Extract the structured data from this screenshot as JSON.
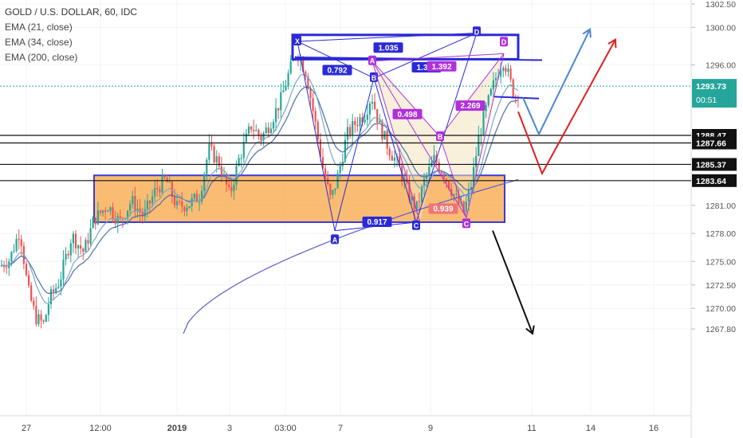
{
  "legend": {
    "title": "GOLD / U.S. DOLLAR, 60, IDC",
    "ema21": "EMA (21, close)",
    "ema34": "EMA (34, close)",
    "ema200": "EMA (200, close)"
  },
  "chart_data": {
    "type": "candlestick",
    "symbol": "GOLD / U.S. DOLLAR",
    "interval": "60",
    "source": "IDC",
    "x_tick_labels": [
      "27",
      "12:00",
      "2019",
      "3",
      "03:00",
      "7",
      "9",
      "11",
      "14",
      "16"
    ],
    "y_ticks": [
      1302.5,
      1300.0,
      1296.0,
      1293.73,
      1281.0,
      1278.0,
      1275.0,
      1272.5,
      1270.0,
      1267.8
    ],
    "y_tick_labels": [
      "1302.50",
      "1300.00",
      "1296.00",
      "1281.00",
      "1278.00",
      "1275.00",
      "1272.50",
      "1270.00",
      "1267.80"
    ],
    "ylim": [
      1267.3,
      1303.0
    ],
    "current_price": 1293.73,
    "current_price_label": "1293.73",
    "countdown_label": "00:51",
    "horizontal_levels": [
      1288.47,
      1287.66,
      1285.37,
      1283.64
    ],
    "horizontal_level_labels": [
      "1288.47",
      "1287.66",
      "1285.37",
      "1283.64"
    ],
    "demand_zone": {
      "from": 1279.2,
      "to": 1284.2
    },
    "supply_zone": {
      "from": 1296.6,
      "to": 1299.2
    },
    "harmonic_blue_points": {
      "X": "X",
      "A": "A",
      "B": "B",
      "C": "C",
      "D": "D"
    },
    "harmonic_blue_ratios": [
      "0.792",
      "1.035",
      "0.917",
      "1.336"
    ],
    "harmonic_purple_points": {
      "A": "A",
      "B": "B",
      "C": "C",
      "D": "D"
    },
    "harmonic_purple_ratios": [
      "0.498",
      "2.269",
      "0.939",
      "1.392"
    ],
    "projection_arrows": [
      "blue-down-then-up",
      "red-down-then-up",
      "black-down"
    ],
    "colors": {
      "up": "#26a69a",
      "down": "#ef5350",
      "ema21": "#7aa7c7",
      "ema34": "#4f6ea8",
      "ema200": "#5a5ad6",
      "zone": "#f7a23b",
      "blue_pattern": "#2a2ad9",
      "purple_pattern": "#b030d9",
      "price_line": "#26a69a"
    }
  }
}
